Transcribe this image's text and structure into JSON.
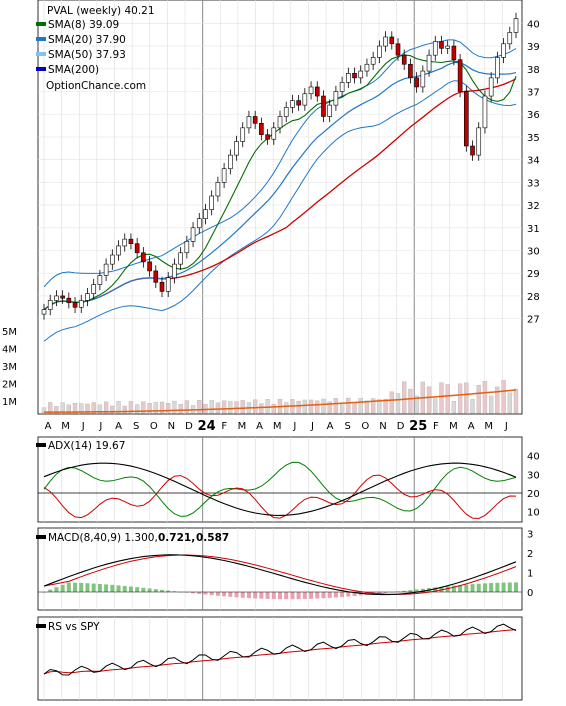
{
  "chart_data": {
    "type": "candlestick",
    "symbol": "PVAL",
    "period": "weekly",
    "price_label": "PVAL (weekly) 40.21",
    "legend": [
      {
        "label": "SMA(8) 39.09",
        "color": "#007000"
      },
      {
        "label": "SMA(20) 37.90",
        "color": "#1f77c8"
      },
      {
        "label": "SMA(50) 37.93",
        "color": "#7fc4f0"
      },
      {
        "label": "SMA(200)",
        "color": "#0000c0"
      }
    ],
    "watermark": "OptionChance.com",
    "x_labels": [
      "A",
      "M",
      "J",
      "J",
      "A",
      "S",
      "O",
      "N",
      "D",
      "24",
      "F",
      "M",
      "A",
      "M",
      "J",
      "J",
      "A",
      "S",
      "O",
      "N",
      "D",
      "25",
      "F",
      "M",
      "A",
      "M",
      "J"
    ],
    "y_ticks": [
      "40",
      "39",
      "38",
      "37",
      "36",
      "35",
      "34",
      "33",
      "32",
      "31",
      "30",
      "29",
      "28",
      "27"
    ],
    "ylim": [
      26.5,
      40.5
    ],
    "close": [
      27.4,
      27.8,
      28.0,
      27.9,
      27.7,
      27.5,
      27.8,
      28.1,
      28.5,
      28.9,
      29.4,
      29.8,
      30.2,
      30.5,
      30.3,
      29.9,
      29.5,
      29.1,
      28.6,
      28.2,
      28.8,
      29.4,
      29.9,
      30.4,
      31.0,
      31.4,
      31.8,
      32.4,
      33.0,
      33.6,
      34.2,
      34.8,
      35.4,
      35.9,
      35.6,
      35.1,
      34.9,
      35.4,
      35.9,
      36.3,
      36.6,
      36.4,
      36.9,
      37.2,
      36.8,
      35.9,
      36.4,
      37.0,
      37.4,
      37.8,
      37.6,
      37.9,
      38.2,
      38.5,
      39.0,
      39.4,
      39.1,
      38.6,
      38.2,
      37.6,
      37.2,
      37.9,
      38.6,
      39.2,
      38.9,
      39.0,
      38.4,
      37.0,
      34.6,
      34.2,
      35.4,
      36.8,
      37.6,
      38.5,
      39.1,
      39.6,
      40.21
    ],
    "volume_ticks": [
      "5M",
      "4M",
      "3M",
      "2M",
      "1M"
    ],
    "adx_label": "ADX(14) 19.67",
    "adx_ticks": [
      "40",
      "30",
      "20",
      "10"
    ],
    "macd_label": "MACD(8,40,9) 1.300,",
    "macd_value2": "0.721,",
    "macd_value3": "0.587",
    "macd_ticks": [
      "3",
      "2",
      "1",
      "0"
    ],
    "rs_label": "RS vs SPY"
  }
}
